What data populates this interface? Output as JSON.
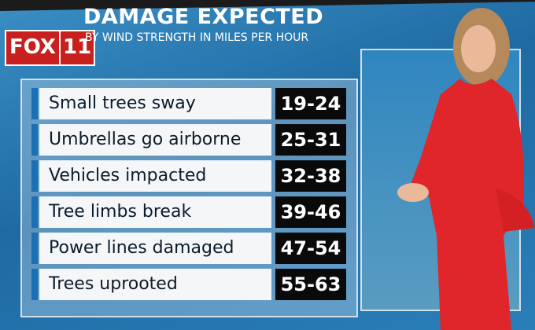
{
  "header": {
    "logo": [
      "FOX",
      "11"
    ],
    "title": "DAMAGE EXPECTED",
    "subtitle": "BY WIND STRENGTH IN MILES PER HOUR"
  },
  "table": {
    "rows": [
      [
        "Small trees sway",
        "19-24"
      ],
      [
        "Umbrellas go airborne",
        "25-31"
      ],
      [
        "Vehicles impacted",
        "32-38"
      ],
      [
        "Tree limbs break",
        "39-46"
      ],
      [
        "Power lines damaged",
        "47-54"
      ],
      [
        "Trees uprooted",
        "55-63"
      ]
    ]
  }
}
